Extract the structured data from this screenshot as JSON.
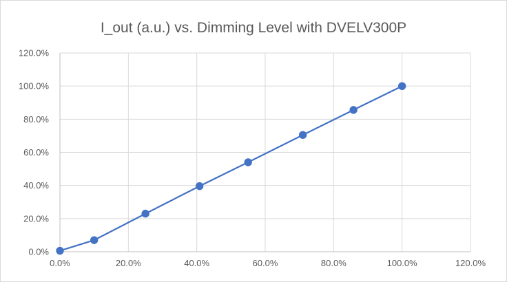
{
  "chart_data": {
    "type": "scatter",
    "title": "I_out (a.u.) vs. Dimming Level with DVELV300P",
    "xlabel": "",
    "ylabel": "",
    "xlim": [
      0,
      120
    ],
    "ylim": [
      0,
      120
    ],
    "x_ticks": [
      "0.0%",
      "20.0%",
      "40.0%",
      "60.0%",
      "80.0%",
      "100.0%",
      "120.0%"
    ],
    "y_ticks": [
      "0.0%",
      "20.0%",
      "40.0%",
      "60.0%",
      "80.0%",
      "100.0%",
      "120.0%"
    ],
    "grid": true,
    "legend": "none",
    "line_connected": true,
    "color": "#4472c4",
    "series": [
      {
        "x": [
          0.0,
          10.0,
          25.0,
          40.8,
          55.0,
          71.0,
          85.8,
          100.0
        ],
        "y": [
          0.6,
          7.0,
          23.0,
          39.6,
          54.0,
          70.5,
          85.6,
          100.0
        ]
      }
    ]
  }
}
